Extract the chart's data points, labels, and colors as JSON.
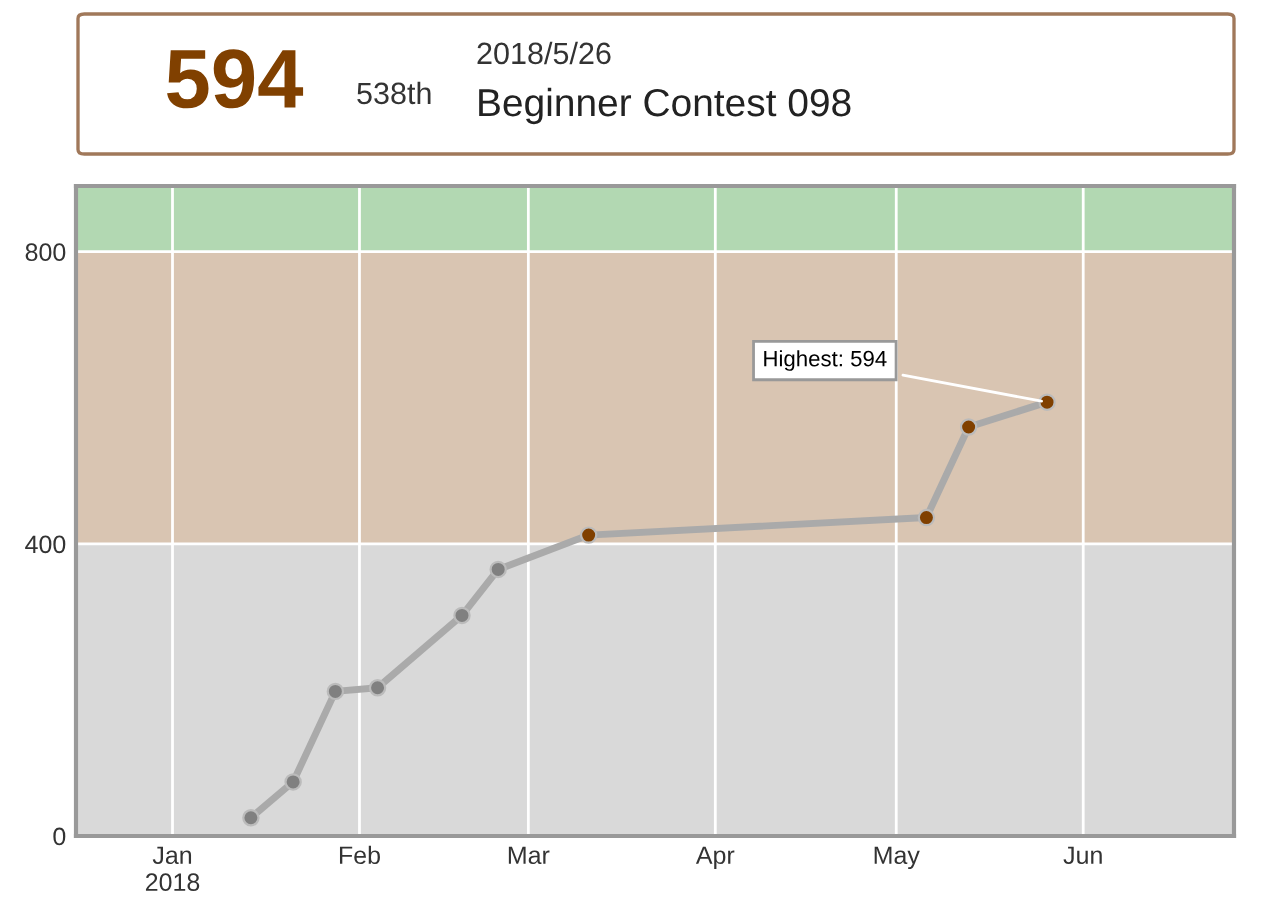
{
  "chart_data": {
    "type": "line",
    "title": "Beginner Contest 098",
    "annotations": [
      "594",
      "538th",
      "2018/5/26",
      {
        "text": "Highest: 594",
        "x": "2018-05-26",
        "y": 594
      }
    ],
    "x": [
      "2018-01-14",
      "2018-01-21",
      "2018-01-28",
      "2018-02-04",
      "2018-02-18",
      "2018-02-24",
      "2018-03-11",
      "2018-05-06",
      "2018-05-13",
      "2018-05-26"
    ],
    "series": [
      {
        "color": "#aaaaaa",
        "colors": [
          "#808080",
          "#808080",
          "#808080",
          "#808080",
          "#808080",
          "#808080",
          "#804000",
          "#804000",
          "#804000",
          "#804000"
        ],
        "values": [
          25,
          74,
          198,
          203,
          302,
          365,
          412,
          436,
          560,
          594
        ]
      }
    ],
    "xlim": [
      "2017-12-16",
      "2018-06-26"
    ],
    "ylim": [
      0,
      890
    ],
    "xticks": [
      {
        "value": "2018-01-01",
        "label": "Jan\n2018"
      },
      {
        "value": "2018-02-01",
        "label": "Feb"
      },
      {
        "value": "2018-03-01",
        "label": "Mar"
      },
      {
        "value": "2018-04-01",
        "label": "Apr"
      },
      {
        "value": "2018-05-01",
        "label": "May"
      },
      {
        "value": "2018-06-01",
        "label": "Jun"
      }
    ],
    "yticks": [
      0,
      400,
      800
    ],
    "bands": [
      {
        "axis": "y",
        "from": 0,
        "to": 400,
        "color": "#d9d9d9"
      },
      {
        "axis": "y",
        "from": 400,
        "to": 800,
        "color": "#d9c5b2"
      },
      {
        "axis": "y",
        "from": 800,
        "to": 890,
        "color": "#b2d8b2"
      }
    ],
    "grid": true,
    "marker": "circle",
    "line_style": "solid",
    "legend": false
  }
}
